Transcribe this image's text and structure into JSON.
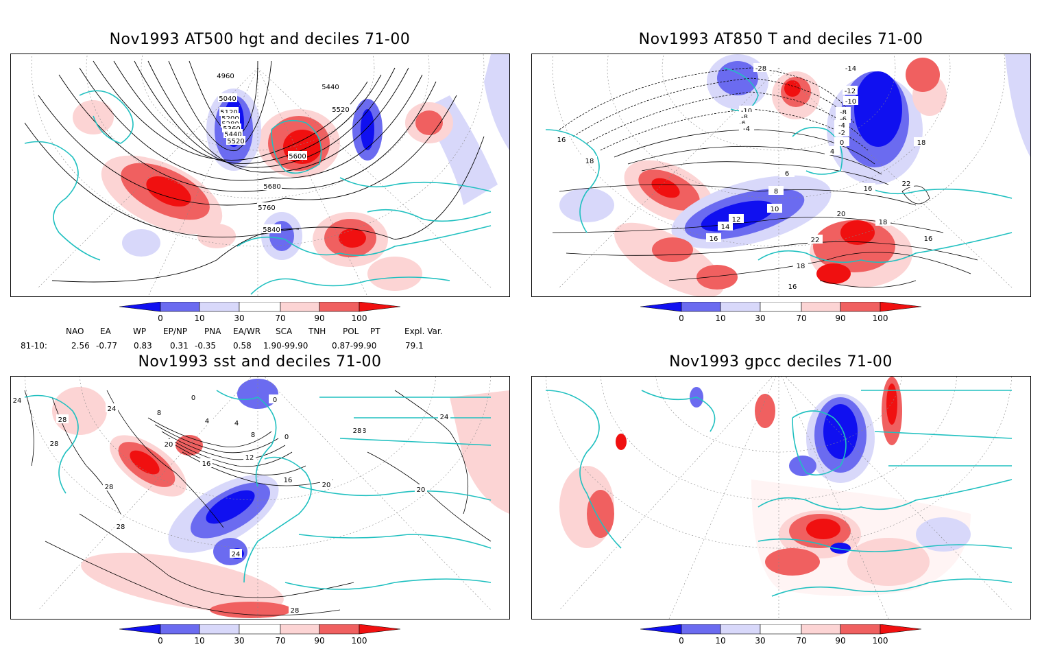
{
  "colors": {
    "deep_blue": "#1010f0",
    "mid_blue": "#6b6bf0",
    "light_blue": "#d8d8fa",
    "light_red": "#fcd4d4",
    "mid_red": "#f06060",
    "deep_red": "#f01010",
    "coast": "#20c0c0",
    "contour": "#000000"
  },
  "colorbar_ticks": [
    "0",
    "10",
    "30",
    "70",
    "90",
    "100"
  ],
  "panels": [
    {
      "title": "Nov1993 AT500 hgt and deciles 71-00",
      "contour_labels": [
        "4960",
        "5040",
        "5120",
        "5200",
        "5280",
        "5360",
        "5440",
        "5520",
        "5440",
        "5520",
        "5600",
        "5680",
        "5760",
        "5840"
      ]
    },
    {
      "title": "Nov1993 AT850 T and deciles 71-00",
      "contour_labels": [
        "-14",
        "-12",
        "-10",
        "-8",
        "-6",
        "-4",
        "-2",
        "0",
        "4",
        "6",
        "8",
        "10",
        "12",
        "14",
        "16",
        "18",
        "20",
        "22",
        "-28",
        "-10",
        "-8",
        "-6",
        "-4",
        "16",
        "16",
        "18",
        "18",
        "16",
        "22",
        "16",
        "18"
      ]
    },
    {
      "title": "Nov1993 sst and deciles 71-00",
      "contour_labels": [
        "24",
        "28",
        "28",
        "24",
        "0",
        "8",
        "4",
        "0",
        "4",
        "8",
        "20",
        "16",
        "12",
        "16",
        "20",
        "28",
        "24",
        "28",
        "28",
        "18",
        "20",
        "24",
        "28",
        "0"
      ]
    },
    {
      "title": "Nov1993 gpcc deciles 71-00",
      "contour_labels": []
    }
  ],
  "indices": {
    "header": [
      "NAO",
      "EA",
      "WP",
      "EP/NP",
      "PNA",
      "EA/WR",
      "SCA",
      "TNH",
      "POL",
      "PT",
      "Expl. Var."
    ],
    "row_label": "81-10:",
    "values": [
      "2.56",
      "-0.77",
      "0.83",
      "0.31",
      "-0.35",
      "0.58",
      "1.90-99.90",
      "0.87-99.90",
      "79.1"
    ]
  }
}
